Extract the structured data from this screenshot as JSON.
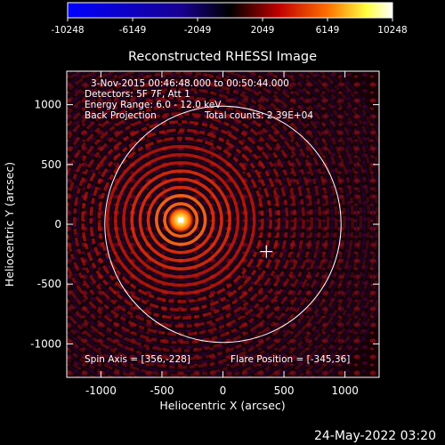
{
  "colorbar": {
    "ticks": [
      "-10248",
      "-6149",
      "-2049",
      "2049",
      "6149",
      "10248"
    ],
    "min": -10248,
    "max": 10248,
    "colors": [
      "#0000ff",
      "#000000",
      "#ff0000",
      "#ffff00",
      "#ffffff"
    ]
  },
  "chart_data": {
    "type": "heatmap",
    "title": "Reconstructed RHESSI Image",
    "xlabel": "Heliocentric X (arcsec)",
    "ylabel": "Heliocentric Y (arcsec)",
    "xlim": [
      -1280,
      1280
    ],
    "ylim": [
      -1280,
      1280
    ],
    "x_ticks": [
      "-1000",
      "-500",
      "0",
      "500",
      "1000"
    ],
    "y_ticks": [
      "-1000",
      "-500",
      "0",
      "500",
      "1000"
    ],
    "x_tick_values": [
      -1000,
      -500,
      0,
      500,
      1000
    ],
    "y_tick_values": [
      -1000,
      -500,
      0,
      500,
      1000
    ],
    "solar_radius_arcsec": 968,
    "source_position": [
      -345,
      36
    ],
    "spin_axis": [
      356,
      -228
    ],
    "annotations": [
      "3-Nov-2015 00:46:48.000 to 00:50:44.000",
      "Detectors: 5F 7F, Att 1",
      "Energy Range: 6.0 - 12.0 keV",
      "Back Projection",
      "Total counts: 2.39E+04"
    ],
    "spin_axis_label": "Spin Axis = [356,-228]",
    "flare_position_label": "Flare Position = [-345,36]"
  },
  "footer": {
    "date": "24-May-2022 03:20"
  }
}
